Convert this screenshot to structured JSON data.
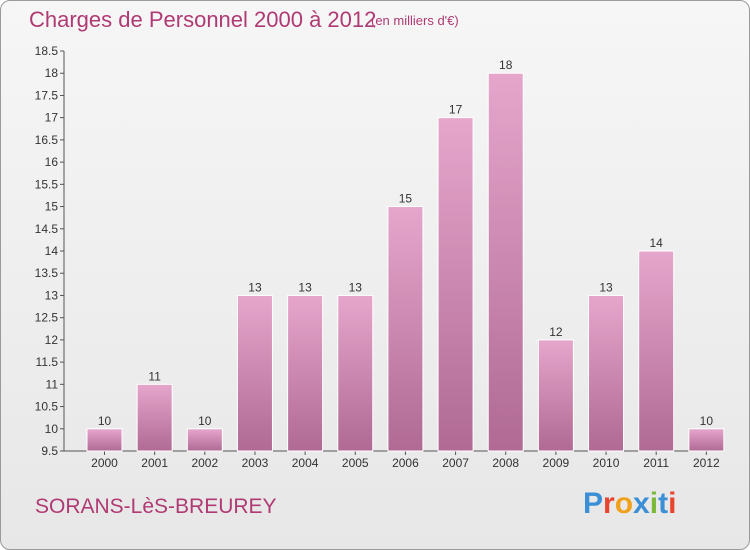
{
  "header": {
    "title": "Charges de Personnel 2000 à 2012",
    "unit": "(en milliers d'€)"
  },
  "footer": {
    "commune": "SORANS-LèS-BREUREY",
    "logo_text": "Proxiti"
  },
  "colors": {
    "bar_light": "#e6a6cc",
    "bar_dark": "#b06a94",
    "title": "#b03a73",
    "logo_letters": [
      "#3a8fd6",
      "#e8442e",
      "#f0a11c",
      "#3a8fd6",
      "#7ab83a",
      "#3a8fd6",
      "#e8442e"
    ]
  },
  "chart_data": {
    "type": "bar",
    "title": "Charges de Personnel 2000 à 2012",
    "categories": [
      "2000",
      "2001",
      "2002",
      "2003",
      "2004",
      "2005",
      "2006",
      "2007",
      "2008",
      "2009",
      "2010",
      "2011",
      "2012"
    ],
    "values": [
      10,
      11,
      10,
      13,
      13,
      13,
      15,
      17,
      18,
      12,
      13,
      14,
      10
    ],
    "ylim": [
      9.5,
      18.5
    ],
    "yticks": [
      "9.5",
      "10",
      "10.5",
      "11",
      "11.5",
      "12",
      "12.5",
      "13",
      "13.5",
      "14",
      "14.5",
      "15",
      "15.5",
      "16",
      "16.5",
      "17",
      "17.5",
      "18",
      "18.5"
    ],
    "grid": false,
    "xlabel": "",
    "ylabel": ""
  }
}
